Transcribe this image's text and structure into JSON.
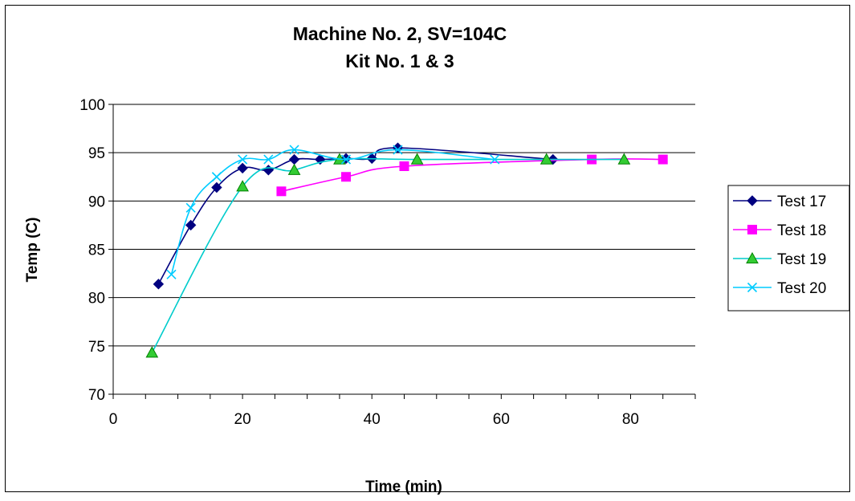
{
  "chart_data": {
    "type": "line",
    "title": [
      "Machine No. 2,  SV=104C",
      "Kit No. 1 & 3"
    ],
    "xlabel": "Time (min)",
    "ylabel": "Temp (C)",
    "xlim": [
      0,
      90
    ],
    "ylim": [
      70,
      100
    ],
    "x_ticks": [
      0,
      20,
      40,
      60,
      80
    ],
    "x_minor_step": 5,
    "y_ticks": [
      70,
      75,
      80,
      85,
      90,
      95,
      100
    ],
    "grid": "horizontal major",
    "legend_position": "right",
    "series": [
      {
        "name": "Test 17",
        "color": "#000080",
        "marker": "diamond",
        "points": [
          [
            7,
            81.4
          ],
          [
            12,
            87.5
          ],
          [
            16,
            91.4
          ],
          [
            20,
            93.4
          ],
          [
            24,
            93.2
          ],
          [
            28,
            94.3
          ],
          [
            32,
            94.3
          ],
          [
            36,
            94.4
          ],
          [
            40,
            94.4
          ],
          [
            44,
            95.5
          ],
          [
            68,
            94.3
          ]
        ]
      },
      {
        "name": "Test 18",
        "color": "#ff00ff",
        "marker": "square",
        "points": [
          [
            26,
            91.0
          ],
          [
            36,
            92.5
          ],
          [
            45,
            93.6
          ],
          [
            74,
            94.3
          ],
          [
            85,
            94.3
          ]
        ]
      },
      {
        "name": "Test 19",
        "color": "#00cccc",
        "marker": "triangle",
        "markerFill": "#33cc33",
        "points": [
          [
            6,
            74.3
          ],
          [
            20,
            91.5
          ],
          [
            28,
            93.2
          ],
          [
            35,
            94.3
          ],
          [
            47,
            94.3
          ],
          [
            67,
            94.3
          ],
          [
            79,
            94.3
          ]
        ]
      },
      {
        "name": "Test 20",
        "color": "#00ccff",
        "marker": "x",
        "points": [
          [
            9,
            82.4
          ],
          [
            12,
            89.3
          ],
          [
            16,
            92.5
          ],
          [
            20,
            94.3
          ],
          [
            24,
            94.3
          ],
          [
            28,
            95.3
          ],
          [
            36,
            94.3
          ],
          [
            44,
            95.3
          ],
          [
            59,
            94.3
          ]
        ]
      }
    ]
  }
}
